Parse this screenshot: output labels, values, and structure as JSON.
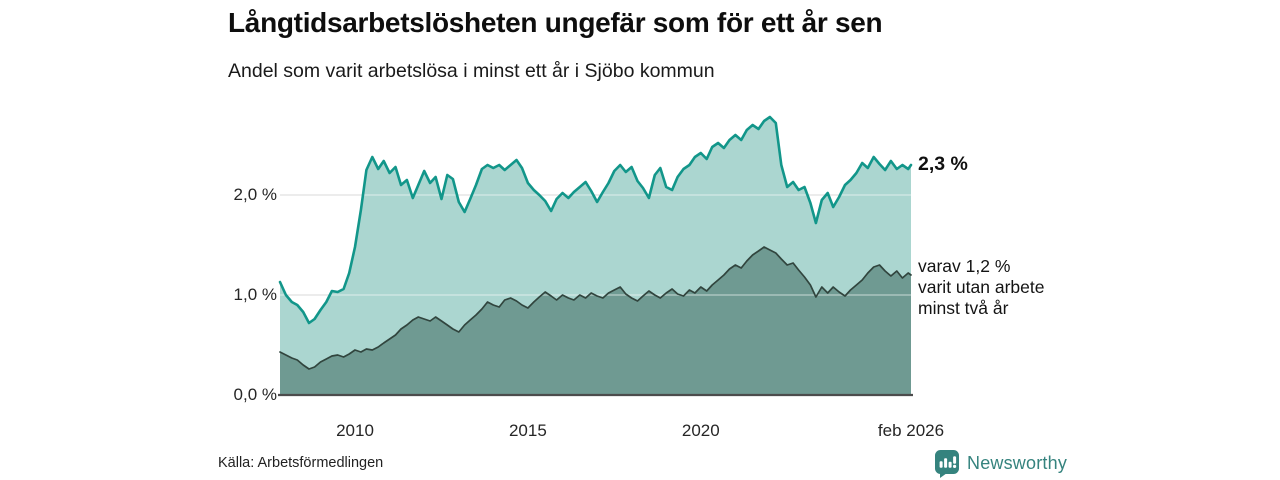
{
  "header": {
    "title": "Långtidsarbetslösheten ungefär som för ett år sen",
    "subtitle": "Andel som varit arbetslösa i minst ett år i Sjöbo kommun"
  },
  "chart_data": {
    "type": "area",
    "title": "Långtidsarbetslösheten ungefär som för ett år sen",
    "subtitle": "Andel som varit arbetslösa i minst ett år i Sjöbo kommun",
    "unit": "%",
    "grid": {
      "horizontal": true,
      "color": "#d9d9d9",
      "highlight": "rgba(255,255,255,0.42)"
    },
    "baseline_color": "#4c4c4c",
    "x_domain": [
      2007.83,
      2026.08
    ],
    "y_domain": [
      0,
      2.85
    ],
    "y_ticks": [
      {
        "value": 0,
        "label": "0,0 %"
      },
      {
        "value": 1,
        "label": "1,0 %"
      },
      {
        "value": 2,
        "label": "2,0 %"
      }
    ],
    "x_ticks": [
      {
        "value": 2010,
        "label": "2010"
      },
      {
        "value": 2015,
        "label": "2015"
      },
      {
        "value": 2020,
        "label": "2020"
      },
      {
        "value": 2026.08,
        "label": "feb 2026"
      }
    ],
    "x": [
      2007.83,
      2008.0,
      2008.17,
      2008.33,
      2008.5,
      2008.67,
      2008.83,
      2009.0,
      2009.17,
      2009.33,
      2009.5,
      2009.67,
      2009.83,
      2010.0,
      2010.17,
      2010.33,
      2010.5,
      2010.67,
      2010.83,
      2011.0,
      2011.17,
      2011.33,
      2011.5,
      2011.67,
      2011.83,
      2012.0,
      2012.17,
      2012.33,
      2012.5,
      2012.67,
      2012.83,
      2013.0,
      2013.17,
      2013.33,
      2013.5,
      2013.67,
      2013.83,
      2014.0,
      2014.17,
      2014.33,
      2014.5,
      2014.67,
      2014.83,
      2015.0,
      2015.17,
      2015.33,
      2015.5,
      2015.67,
      2015.83,
      2016.0,
      2016.17,
      2016.33,
      2016.5,
      2016.67,
      2016.83,
      2017.0,
      2017.17,
      2017.33,
      2017.5,
      2017.67,
      2017.83,
      2018.0,
      2018.17,
      2018.33,
      2018.5,
      2018.67,
      2018.83,
      2019.0,
      2019.17,
      2019.33,
      2019.5,
      2019.67,
      2019.83,
      2020.0,
      2020.17,
      2020.33,
      2020.5,
      2020.67,
      2020.83,
      2021.0,
      2021.17,
      2021.33,
      2021.5,
      2021.67,
      2021.83,
      2022.0,
      2022.17,
      2022.33,
      2022.5,
      2022.67,
      2022.83,
      2023.0,
      2023.17,
      2023.33,
      2023.5,
      2023.67,
      2023.83,
      2024.0,
      2024.17,
      2024.33,
      2024.5,
      2024.67,
      2024.83,
      2025.0,
      2025.17,
      2025.33,
      2025.5,
      2025.67,
      2025.83,
      2026.0,
      2026.08
    ],
    "series": [
      {
        "name": "Arbetslösa minst ett år",
        "fill": "#abd6d0",
        "stroke": "#12968a",
        "stroke_width": 2.6,
        "end_label": "2,3 %",
        "end_value": 2.3,
        "values": [
          1.13,
          1.0,
          0.93,
          0.9,
          0.83,
          0.72,
          0.76,
          0.85,
          0.93,
          1.04,
          1.03,
          1.06,
          1.22,
          1.48,
          1.85,
          2.25,
          2.38,
          2.26,
          2.34,
          2.22,
          2.28,
          2.1,
          2.15,
          1.97,
          2.1,
          2.24,
          2.12,
          2.18,
          1.96,
          2.2,
          2.16,
          1.93,
          1.83,
          1.96,
          2.1,
          2.26,
          2.3,
          2.27,
          2.3,
          2.25,
          2.3,
          2.35,
          2.27,
          2.12,
          2.05,
          2.0,
          1.94,
          1.84,
          1.96,
          2.02,
          1.97,
          2.03,
          2.08,
          2.13,
          2.04,
          1.93,
          2.03,
          2.12,
          2.24,
          2.3,
          2.23,
          2.28,
          2.14,
          2.07,
          1.97,
          2.2,
          2.27,
          2.08,
          2.05,
          2.18,
          2.26,
          2.3,
          2.38,
          2.42,
          2.36,
          2.48,
          2.52,
          2.47,
          2.55,
          2.6,
          2.55,
          2.65,
          2.7,
          2.66,
          2.74,
          2.78,
          2.72,
          2.3,
          2.08,
          2.13,
          2.05,
          2.08,
          1.92,
          1.72,
          1.95,
          2.02,
          1.88,
          1.98,
          2.1,
          2.15,
          2.22,
          2.32,
          2.27,
          2.38,
          2.31,
          2.25,
          2.34,
          2.26,
          2.3,
          2.26,
          2.3
        ]
      },
      {
        "name": "Utan arbete minst två år",
        "fill": "#6f9a92",
        "stroke": "#31453e",
        "stroke_width": 1.7,
        "end_value": 1.2,
        "end_label_lines": [
          "varav 1,2 %",
          "varit utan arbete",
          "minst två år"
        ],
        "values": [
          0.43,
          0.4,
          0.37,
          0.35,
          0.3,
          0.26,
          0.28,
          0.33,
          0.36,
          0.39,
          0.4,
          0.38,
          0.41,
          0.45,
          0.43,
          0.46,
          0.45,
          0.48,
          0.52,
          0.56,
          0.6,
          0.66,
          0.7,
          0.75,
          0.78,
          0.76,
          0.74,
          0.78,
          0.74,
          0.7,
          0.66,
          0.63,
          0.7,
          0.75,
          0.8,
          0.86,
          0.93,
          0.9,
          0.88,
          0.95,
          0.97,
          0.94,
          0.9,
          0.87,
          0.93,
          0.98,
          1.03,
          0.99,
          0.95,
          1.0,
          0.97,
          0.95,
          1.0,
          0.97,
          1.02,
          0.99,
          0.97,
          1.02,
          1.05,
          1.08,
          1.01,
          0.97,
          0.94,
          0.99,
          1.04,
          1.0,
          0.97,
          1.02,
          1.06,
          1.01,
          0.99,
          1.05,
          1.02,
          1.08,
          1.04,
          1.1,
          1.15,
          1.2,
          1.26,
          1.3,
          1.27,
          1.34,
          1.4,
          1.44,
          1.48,
          1.45,
          1.42,
          1.36,
          1.3,
          1.32,
          1.25,
          1.18,
          1.1,
          0.98,
          1.08,
          1.02,
          1.08,
          1.03,
          0.99,
          1.05,
          1.1,
          1.15,
          1.22,
          1.28,
          1.3,
          1.24,
          1.19,
          1.24,
          1.17,
          1.22,
          1.2
        ]
      }
    ]
  },
  "footer": {
    "source": "Källa: Arbetsförmedlingen",
    "brand": "Newsworthy",
    "brand_color": "#35837e"
  }
}
